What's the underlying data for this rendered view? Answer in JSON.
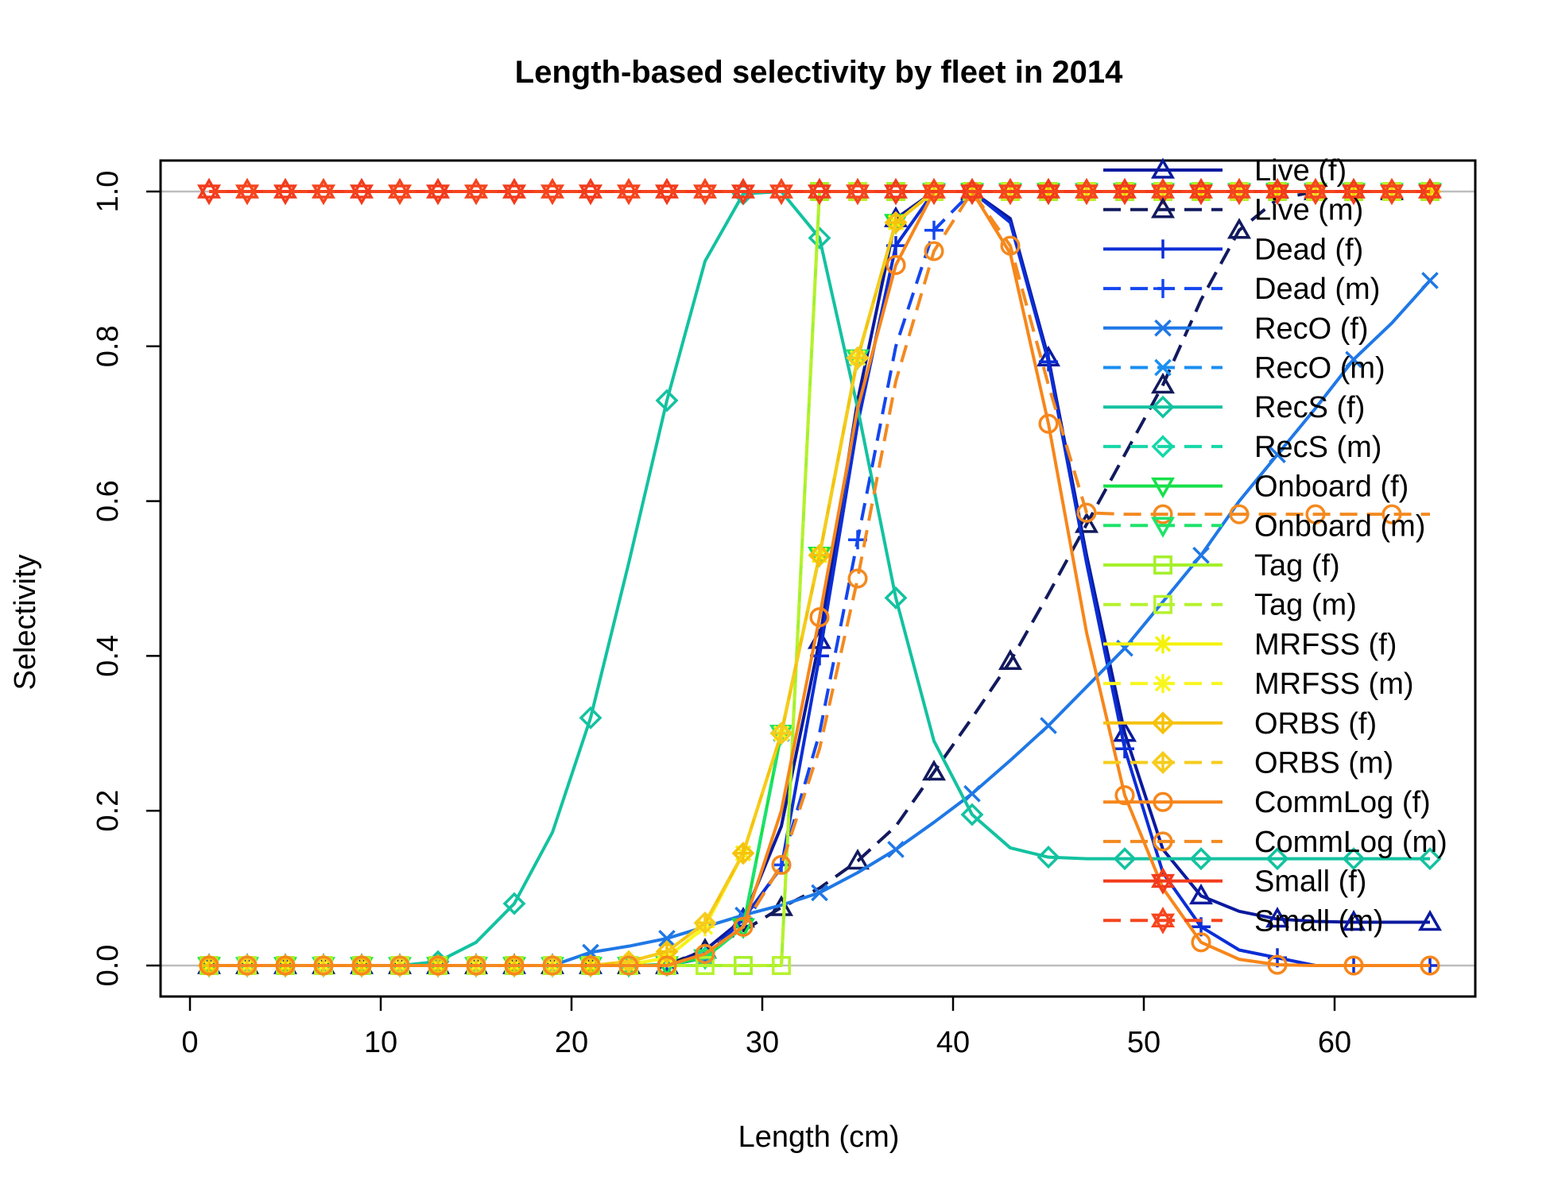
{
  "chart_data": {
    "type": "line",
    "title": "Length-based selectivity by fleet in 2014",
    "xlabel": "Length (cm)",
    "ylabel": "Selectivity",
    "xlim": [
      0,
      67
    ],
    "ylim": [
      0,
      1
    ],
    "x_ticks": [
      "0",
      "10",
      "20",
      "30",
      "40",
      "50",
      "60"
    ],
    "y_ticks": [
      "0.0",
      "0.2",
      "0.4",
      "0.6",
      "0.8",
      "1.0"
    ],
    "legend_position": "top-right",
    "reference_lines": [
      0,
      1
    ],
    "x": [
      1,
      3,
      5,
      7,
      9,
      11,
      13,
      15,
      17,
      19,
      21,
      23,
      25,
      27,
      29,
      31,
      33,
      35,
      37,
      39,
      41,
      43,
      45,
      47,
      49,
      51,
      53,
      55,
      57,
      59,
      61,
      63,
      65
    ],
    "series": [
      {
        "name": "Live (f)",
        "color": "#0a1a9e",
        "dash": "solid",
        "marker": "triangle",
        "values": [
          0,
          0,
          0,
          0,
          0,
          0,
          0,
          0,
          0,
          0,
          0,
          0,
          0,
          0.02,
          0.06,
          0.18,
          0.42,
          0.73,
          0.965,
          1,
          1,
          0.965,
          0.785,
          0.53,
          0.3,
          0.15,
          0.09,
          0.07,
          0.06,
          0.057,
          0.056,
          0.056,
          0.056
        ]
      },
      {
        "name": "Live (m)",
        "color": "#121a5e",
        "dash": "dashed",
        "marker": "triangle",
        "values": [
          0,
          0,
          0,
          0,
          0,
          0,
          0,
          0,
          0,
          0,
          0,
          0,
          0.001,
          0.02,
          0.045,
          0.075,
          0.1,
          0.135,
          0.18,
          0.25,
          0.32,
          0.393,
          0.48,
          0.57,
          0.66,
          0.75,
          0.86,
          0.95,
          0.99,
          1,
          1,
          1,
          1
        ]
      },
      {
        "name": "Dead (f)",
        "color": "#0b2ed6",
        "dash": "solid",
        "marker": "plus",
        "values": [
          0,
          0,
          0,
          0,
          0,
          0,
          0,
          0,
          0,
          0,
          0,
          0,
          0,
          0.01,
          0.06,
          0.127,
          0.4,
          0.7,
          0.93,
          1,
          1,
          0.96,
          0.78,
          0.52,
          0.28,
          0.12,
          0.05,
          0.02,
          0.01,
          0,
          0,
          0,
          0
        ]
      },
      {
        "name": "Dead (m)",
        "color": "#1446ef",
        "dash": "dashed",
        "marker": "plus",
        "values": [
          0,
          0,
          0,
          0,
          0,
          0,
          0,
          0,
          0,
          0,
          0,
          0,
          0,
          0.01,
          0.05,
          0.13,
          0.3,
          0.55,
          0.8,
          0.95,
          1,
          1,
          1,
          1,
          1,
          1,
          1,
          1,
          1,
          1,
          1,
          1,
          1
        ]
      },
      {
        "name": "RecO (f)",
        "color": "#1f78e6",
        "dash": "solid",
        "marker": "x",
        "values": [
          0,
          0,
          0,
          0,
          0,
          0,
          0,
          0,
          0,
          0,
          0.017,
          0.025,
          0.035,
          0.05,
          0.065,
          0.078,
          0.094,
          0.12,
          0.15,
          0.185,
          0.222,
          0.265,
          0.31,
          0.36,
          0.41,
          0.47,
          0.53,
          0.6,
          0.66,
          0.72,
          0.783,
          0.83,
          0.885
        ]
      },
      {
        "name": "RecO (m)",
        "color": "#1a8ff0",
        "dash": "dashed",
        "marker": "x",
        "values": [
          0,
          0,
          0,
          0,
          0,
          0,
          0,
          0,
          0,
          0,
          0,
          0,
          0.001,
          0.01,
          0.05,
          0.3,
          0.53,
          0.785,
          0.96,
          1,
          1,
          1,
          1,
          1,
          1,
          1,
          1,
          1,
          1,
          1,
          1,
          1,
          1
        ]
      },
      {
        "name": "RecS (f)",
        "color": "#13c2a0",
        "dash": "solid",
        "marker": "diamond",
        "values": [
          0,
          0,
          0,
          0,
          0,
          0,
          0.005,
          0.03,
          0.08,
          0.172,
          0.32,
          0.52,
          0.73,
          0.91,
          0.997,
          1,
          0.94,
          0.72,
          0.475,
          0.29,
          0.195,
          0.152,
          0.14,
          0.138,
          0.138,
          0.138,
          0.138,
          0.138,
          0.138,
          0.138,
          0.138,
          0.138,
          0.138
        ]
      },
      {
        "name": "RecS (m)",
        "color": "#15d7a8",
        "dash": "dashed",
        "marker": "diamond",
        "values": [
          0,
          0,
          0,
          0,
          0,
          0,
          0,
          0,
          0,
          0,
          0,
          0,
          0,
          0.01,
          0.05,
          0.3,
          0.53,
          0.785,
          0.96,
          1,
          1,
          1,
          1,
          1,
          1,
          1,
          1,
          1,
          1,
          1,
          1,
          1,
          1
        ]
      },
      {
        "name": "Onboard (f)",
        "color": "#16e04a",
        "dash": "solid",
        "marker": "triangle-down",
        "values": [
          0,
          0,
          0,
          0,
          0,
          0,
          0,
          0,
          0,
          0,
          0,
          0,
          0.001,
          0.01,
          0.05,
          0.3,
          0.53,
          0.785,
          0.96,
          1,
          1,
          1,
          1,
          1,
          1,
          1,
          1,
          1,
          1,
          1,
          1,
          1,
          1
        ]
      },
      {
        "name": "Onboard (m)",
        "color": "#1ee36a",
        "dash": "dashed",
        "marker": "triangle-down",
        "values": [
          0,
          0,
          0,
          0,
          0,
          0,
          0,
          0,
          0,
          0,
          0,
          0,
          0.001,
          0.01,
          0.05,
          0.3,
          0.53,
          0.785,
          0.96,
          1,
          1,
          1,
          1,
          1,
          1,
          1,
          1,
          1,
          1,
          1,
          1,
          1,
          1
        ]
      },
      {
        "name": "Tag (f)",
        "color": "#a4f02a",
        "dash": "solid",
        "marker": "square",
        "values": [
          0,
          0,
          0,
          0,
          0,
          0,
          0,
          0,
          0,
          0,
          0,
          0,
          0,
          0,
          0,
          0,
          1,
          1,
          1,
          1,
          1,
          1,
          1,
          1,
          1,
          1,
          1,
          1,
          1,
          1,
          1,
          1,
          1
        ]
      },
      {
        "name": "Tag (m)",
        "color": "#b6f22e",
        "dash": "dashed",
        "marker": "square",
        "values": [
          0,
          0,
          0,
          0,
          0,
          0,
          0,
          0,
          0,
          0,
          0,
          0,
          0,
          0,
          0,
          0,
          1,
          1,
          1,
          1,
          1,
          1,
          1,
          1,
          1,
          1,
          1,
          1,
          1,
          1,
          1,
          1,
          1
        ]
      },
      {
        "name": "MRFSS (f)",
        "color": "#f4f20a",
        "dash": "solid",
        "marker": "star",
        "values": [
          0,
          0,
          0,
          0,
          0,
          0,
          0,
          0,
          0,
          0,
          0,
          0.001,
          0.01,
          0.05,
          0.145,
          0.3,
          0.53,
          0.785,
          0.96,
          1,
          1,
          1,
          1,
          1,
          1,
          1,
          1,
          1,
          1,
          1,
          1,
          1,
          1
        ]
      },
      {
        "name": "MRFSS (m)",
        "color": "#f8f61e",
        "dash": "dashed",
        "marker": "star",
        "values": [
          0,
          0,
          0,
          0,
          0,
          0,
          0,
          0,
          0,
          0,
          0,
          0.001,
          0.01,
          0.05,
          0.145,
          0.3,
          0.53,
          0.785,
          0.96,
          1,
          1,
          1,
          1,
          1,
          1,
          1,
          1,
          1,
          1,
          1,
          1,
          1,
          1
        ]
      },
      {
        "name": "ORBS (f)",
        "color": "#f5c20c",
        "dash": "solid",
        "marker": "diamond-plus",
        "values": [
          0,
          0,
          0,
          0,
          0,
          0,
          0,
          0,
          0,
          0,
          0,
          0.005,
          0.018,
          0.055,
          0.145,
          0.3,
          0.53,
          0.785,
          0.96,
          1,
          1,
          1,
          1,
          1,
          1,
          1,
          1,
          1,
          1,
          1,
          1,
          1,
          1
        ]
      },
      {
        "name": "ORBS (m)",
        "color": "#f6cc1c",
        "dash": "dashed",
        "marker": "diamond-plus",
        "values": [
          0,
          0,
          0,
          0,
          0,
          0,
          0,
          0,
          0,
          0,
          0,
          0.005,
          0.018,
          0.055,
          0.145,
          0.3,
          0.53,
          0.785,
          0.96,
          1,
          1,
          1,
          1,
          1,
          1,
          1,
          1,
          1,
          1,
          1,
          1,
          1,
          1
        ]
      },
      {
        "name": "CommLog (f)",
        "color": "#f7861a",
        "dash": "solid",
        "marker": "circle",
        "values": [
          0,
          0,
          0,
          0,
          0,
          0,
          0,
          0,
          0,
          0,
          0,
          0,
          0,
          0.015,
          0.05,
          0.2,
          0.45,
          0.72,
          0.905,
          1,
          1,
          0.92,
          0.7,
          0.43,
          0.22,
          0.1,
          0.03,
          0.008,
          0.001,
          0,
          0,
          0,
          0
        ]
      },
      {
        "name": "CommLog (m)",
        "color": "#f38a20",
        "dash": "dashed",
        "marker": "circle",
        "values": [
          0,
          0,
          0,
          0,
          0,
          0,
          0,
          0,
          0,
          0,
          0,
          0,
          0,
          0.015,
          0.05,
          0.13,
          0.28,
          0.5,
          0.755,
          0.923,
          1,
          0.93,
          0.75,
          0.585,
          0.583,
          0.583,
          0.583,
          0.583,
          0.583,
          0.583,
          0.583,
          0.583,
          0.583
        ]
      },
      {
        "name": "Small (f)",
        "color": "#f23b1c",
        "dash": "solid",
        "marker": "hexagram",
        "values": [
          1,
          1,
          1,
          1,
          1,
          1,
          1,
          1,
          1,
          1,
          1,
          1,
          1,
          1,
          1,
          1,
          1,
          1,
          1,
          1,
          1,
          1,
          1,
          1,
          1,
          1,
          1,
          1,
          1,
          1,
          1,
          1,
          1
        ]
      },
      {
        "name": "Small (m)",
        "color": "#f5451e",
        "dash": "dashed",
        "marker": "hexagram",
        "values": [
          1,
          1,
          1,
          1,
          1,
          1,
          1,
          1,
          1,
          1,
          1,
          1,
          1,
          1,
          1,
          1,
          1,
          1,
          1,
          1,
          1,
          1,
          1,
          1,
          1,
          1,
          1,
          1,
          1,
          1,
          1,
          1,
          1
        ]
      }
    ]
  }
}
